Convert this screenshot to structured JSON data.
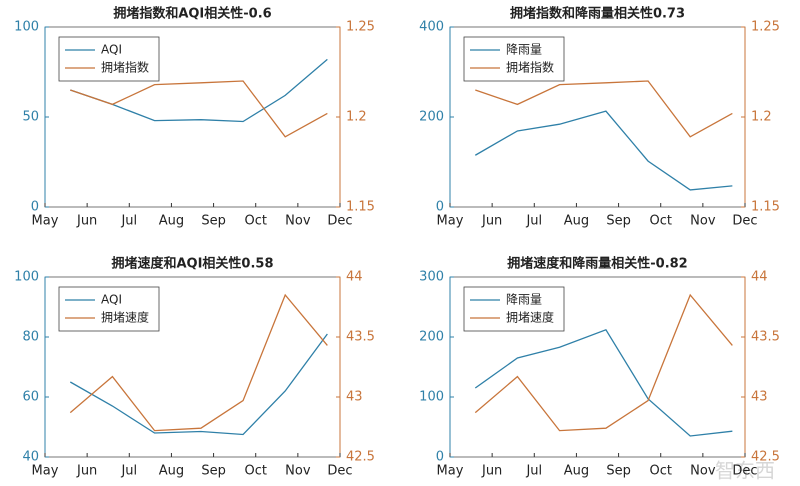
{
  "chart_data": [
    {
      "type": "line",
      "title": "拥堵指数和AQI相关性-0.6",
      "x": [
        0.6,
        1.6,
        2.6,
        3.7,
        4.7,
        5.7,
        6.7
      ],
      "xlim": [
        0,
        7
      ],
      "xticks": [
        {
          "value": 0,
          "label": "May"
        },
        {
          "value": 1,
          "label": "Jun"
        },
        {
          "value": 2,
          "label": "Jul"
        },
        {
          "value": 3,
          "label": "Aug"
        },
        {
          "value": 4,
          "label": "Sep"
        },
        {
          "value": 5,
          "label": "Oct"
        },
        {
          "value": 6,
          "label": "Nov"
        },
        {
          "value": 7,
          "label": "Dec"
        }
      ],
      "ylim": [
        0,
        100
      ],
      "yticks": [
        0,
        50,
        100
      ],
      "y2lim": [
        1.15,
        1.25
      ],
      "y2ticks": [
        1.15,
        1.2,
        1.25
      ],
      "legend": "upper left",
      "series": [
        {
          "name": "AQI",
          "color": "#2f80a8",
          "values": [
            65,
            57,
            48,
            48.5,
            47.5,
            62,
            82
          ]
        },
        {
          "name": "拥堵指数",
          "color": "#c8753b",
          "axis": "y2",
          "values": [
            1.215,
            1.207,
            1.218,
            1.219,
            1.22,
            1.189,
            1.202
          ]
        }
      ]
    },
    {
      "type": "line",
      "title": "拥堵指数和降雨量相关性0.73",
      "x": [
        0.6,
        1.6,
        2.6,
        3.7,
        4.7,
        5.7,
        6.7
      ],
      "xlim": [
        0,
        7
      ],
      "xticks": [
        {
          "value": 0,
          "label": "May"
        },
        {
          "value": 1,
          "label": "Jun"
        },
        {
          "value": 2,
          "label": "Jul"
        },
        {
          "value": 3,
          "label": "Aug"
        },
        {
          "value": 4,
          "label": "Sep"
        },
        {
          "value": 5,
          "label": "Oct"
        },
        {
          "value": 6,
          "label": "Nov"
        },
        {
          "value": 7,
          "label": "Dec"
        }
      ],
      "ylim": [
        0,
        400
      ],
      "yticks": [
        0,
        200,
        400
      ],
      "y2lim": [
        1.15,
        1.25
      ],
      "y2ticks": [
        1.15,
        1.2,
        1.25
      ],
      "legend": "upper left",
      "series": [
        {
          "name": "降雨量",
          "color": "#2f80a8",
          "values": [
            115,
            169,
            184,
            213,
            102,
            38,
            47
          ]
        },
        {
          "name": "拥堵指数",
          "color": "#c8753b",
          "axis": "y2",
          "values": [
            1.215,
            1.207,
            1.218,
            1.219,
            1.22,
            1.189,
            1.202
          ]
        }
      ]
    },
    {
      "type": "line",
      "title": "拥堵速度和AQI相关性0.58",
      "x": [
        0.6,
        1.6,
        2.6,
        3.7,
        4.7,
        5.7,
        6.7
      ],
      "xlim": [
        0,
        7
      ],
      "xticks": [
        {
          "value": 0,
          "label": "May"
        },
        {
          "value": 1,
          "label": "Jun"
        },
        {
          "value": 2,
          "label": "Jul"
        },
        {
          "value": 3,
          "label": "Aug"
        },
        {
          "value": 4,
          "label": "Sep"
        },
        {
          "value": 5,
          "label": "Oct"
        },
        {
          "value": 6,
          "label": "Nov"
        },
        {
          "value": 7,
          "label": "Dec"
        }
      ],
      "ylim": [
        40,
        100
      ],
      "yticks": [
        40,
        60,
        80,
        100
      ],
      "y2lim": [
        42.5,
        44
      ],
      "y2ticks": [
        42.5,
        43,
        43.5,
        44
      ],
      "legend": "upper left",
      "series": [
        {
          "name": "AQI",
          "color": "#2f80a8",
          "values": [
            65,
            57,
            48,
            48.5,
            47.5,
            62,
            81
          ]
        },
        {
          "name": "拥堵速度",
          "color": "#c8753b",
          "axis": "y2",
          "values": [
            42.87,
            43.17,
            42.72,
            42.74,
            42.97,
            43.85,
            43.43
          ]
        }
      ]
    },
    {
      "type": "line",
      "title": "拥堵速度和降雨量相关性-0.82",
      "x": [
        0.6,
        1.6,
        2.6,
        3.7,
        4.7,
        5.7,
        6.7
      ],
      "xlim": [
        0,
        7
      ],
      "xticks": [
        {
          "value": 0,
          "label": "May"
        },
        {
          "value": 1,
          "label": "Jun"
        },
        {
          "value": 2,
          "label": "Jul"
        },
        {
          "value": 3,
          "label": "Aug"
        },
        {
          "value": 4,
          "label": "Sep"
        },
        {
          "value": 5,
          "label": "Oct"
        },
        {
          "value": 6,
          "label": "Nov"
        },
        {
          "value": 7,
          "label": "Dec"
        }
      ],
      "ylim": [
        0,
        300
      ],
      "yticks": [
        0,
        100,
        200,
        300
      ],
      "y2lim": [
        42.5,
        44
      ],
      "y2ticks": [
        42.5,
        43,
        43.5,
        44
      ],
      "legend": "upper left",
      "series": [
        {
          "name": "降雨量",
          "color": "#2f80a8",
          "values": [
            115,
            165,
            183,
            212,
            97,
            35,
            43
          ]
        },
        {
          "name": "拥堵速度",
          "color": "#c8753b",
          "axis": "y2",
          "values": [
            42.87,
            43.17,
            42.72,
            42.74,
            42.97,
            43.85,
            43.43
          ]
        }
      ]
    }
  ],
  "watermark": "智东西"
}
